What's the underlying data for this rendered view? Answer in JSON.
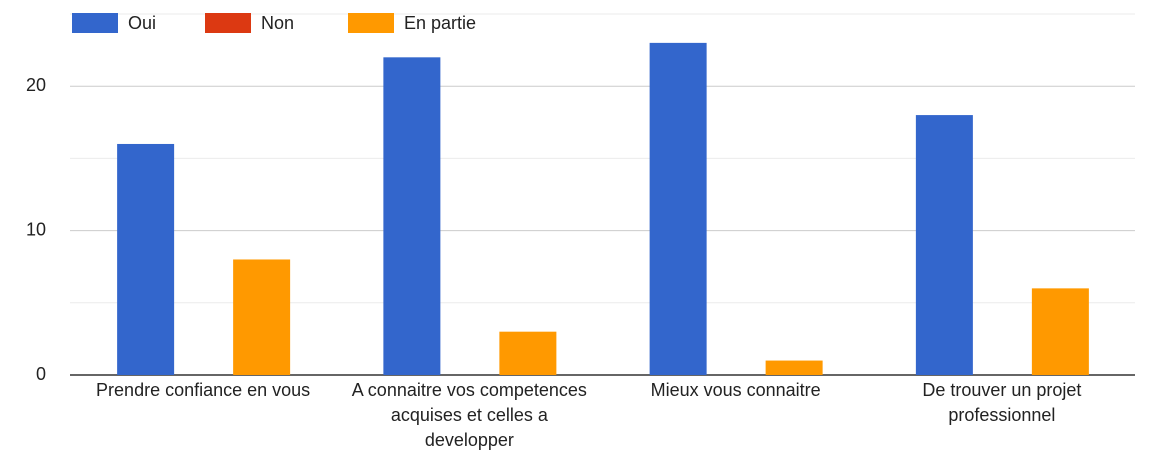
{
  "chart_data": {
    "type": "bar",
    "categories": [
      "Prendre confiance en vous",
      "A connaitre vos competences acquises et celles a developper",
      "Mieux vous connaitre",
      "De trouver un projet professionnel"
    ],
    "series": [
      {
        "name": "Oui",
        "color": "#3366cc",
        "values": [
          16,
          22,
          23,
          18
        ]
      },
      {
        "name": "Non",
        "color": "#dc3912",
        "values": [
          0,
          0,
          0,
          0
        ]
      },
      {
        "name": "En partie",
        "color": "#ff9900",
        "values": [
          8,
          3,
          1,
          6
        ]
      }
    ],
    "ylim": [
      0,
      25
    ],
    "yticks": [
      0,
      10,
      20
    ],
    "minor_grid": [
      5,
      15,
      25
    ],
    "grid": true,
    "legend": "top"
  }
}
